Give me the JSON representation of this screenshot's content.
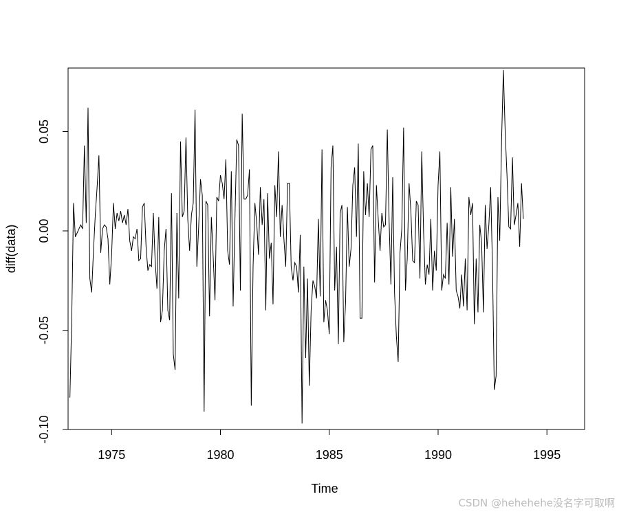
{
  "chart_data": {
    "type": "line",
    "title": "",
    "xlabel": "Time",
    "ylabel": "diff(data)",
    "xlim": [
      1973.0,
      1996.7
    ],
    "ylim": [
      -0.1,
      0.082
    ],
    "x_ticks": [
      1975,
      1980,
      1985,
      1990,
      1995
    ],
    "x_tick_labels": [
      "1975",
      "1980",
      "1985",
      "1990",
      "1995"
    ],
    "y_ticks": [
      -0.1,
      -0.05,
      0.0,
      0.05
    ],
    "y_tick_labels": [
      "-0.10",
      "-0.05",
      "0.00",
      "0.05"
    ],
    "grid": false,
    "legend": "none",
    "line_color": "#000000",
    "series": [
      {
        "x_start": 1973.083,
        "x_step": 0.08333,
        "values": [
          -0.084,
          -0.045,
          0.014,
          -0.003,
          -0.001,
          0.001,
          0.003,
          0.001,
          0.043,
          0.004,
          0.062,
          -0.024,
          -0.031,
          -0.01,
          0.008,
          0.022,
          0.038,
          -0.011,
          0.001,
          0.003,
          0.002,
          -0.004,
          -0.027,
          -0.012,
          0.014,
          0.001,
          0.009,
          0.005,
          0.01,
          0.004,
          0.008,
          0.003,
          0.011,
          -0.005,
          -0.01,
          -0.003,
          -0.004,
          0.001,
          -0.015,
          -0.014,
          0.012,
          0.014,
          -0.008,
          -0.02,
          -0.017,
          -0.018,
          0.009,
          -0.015,
          -0.029,
          0.007,
          -0.046,
          -0.04,
          -0.01,
          0.001,
          -0.04,
          -0.045,
          0.019,
          -0.062,
          -0.07,
          0.009,
          -0.034,
          0.045,
          0.007,
          0.01,
          0.047,
          0.006,
          -0.01,
          0.008,
          0.014,
          0.061,
          -0.018,
          0.002,
          0.026,
          0.018,
          -0.091,
          0.015,
          0.013,
          -0.043,
          0.007,
          -0.013,
          -0.035,
          0.017,
          0.015,
          0.028,
          0.024,
          0.016,
          0.036,
          -0.01,
          -0.017,
          0.03,
          -0.038,
          0.006,
          0.046,
          0.043,
          -0.03,
          0.059,
          0.016,
          0.016,
          0.018,
          0.031,
          -0.088,
          -0.018,
          0.014,
          0.004,
          -0.012,
          0.022,
          0.003,
          0.016,
          -0.04,
          0.019,
          -0.014,
          -0.006,
          -0.037,
          0.023,
          0.007,
          0.04,
          -0.003,
          0.013,
          -0.004,
          -0.018,
          0.024,
          0.024,
          -0.018,
          -0.025,
          -0.016,
          -0.018,
          -0.031,
          -0.002,
          -0.097,
          -0.018,
          -0.064,
          -0.024,
          -0.078,
          -0.04,
          -0.025,
          -0.028,
          -0.034,
          0.006,
          -0.033,
          0.041,
          -0.046,
          -0.035,
          -0.04,
          -0.052,
          0.032,
          0.043,
          -0.03,
          -0.008,
          -0.057,
          0.009,
          0.013,
          -0.056,
          -0.036,
          0.012,
          -0.018,
          -0.009,
          0.023,
          0.032,
          -0.003,
          0.044,
          -0.044,
          -0.044,
          0.03,
          0.008,
          0.024,
          0.007,
          0.041,
          0.043,
          -0.026,
          0.023,
          0.006,
          -0.01,
          0.009,
          0.002,
          0.003,
          0.051,
          0.005,
          -0.027,
          0.027,
          -0.031,
          -0.053,
          -0.066,
          -0.011,
          0.001,
          0.052,
          -0.03,
          -0.014,
          0.024,
          0.01,
          -0.015,
          -0.016,
          0.015,
          0.013,
          -0.024,
          0.04,
          0.0,
          -0.027,
          -0.017,
          -0.022,
          0.006,
          -0.03,
          -0.01,
          -0.02,
          0.023,
          0.04,
          -0.03,
          -0.022,
          -0.024,
          0.004,
          -0.027,
          0.022,
          -0.013,
          0.006,
          -0.03,
          -0.033,
          -0.039,
          -0.022,
          -0.038,
          -0.014,
          -0.04,
          0.017,
          0.008,
          0.014,
          -0.047,
          -0.014,
          -0.041,
          0.003,
          -0.006,
          -0.041,
          0.013,
          -0.009,
          0.003,
          0.022,
          -0.018,
          -0.08,
          -0.073,
          0.017,
          -0.005,
          0.045,
          0.081,
          0.05,
          0.028,
          0.002,
          0.001,
          0.037,
          0.003,
          0.008,
          0.014,
          -0.008,
          0.024,
          0.006
        ]
      }
    ]
  },
  "watermark": "CSDN @hehehehe没名字可取啊"
}
